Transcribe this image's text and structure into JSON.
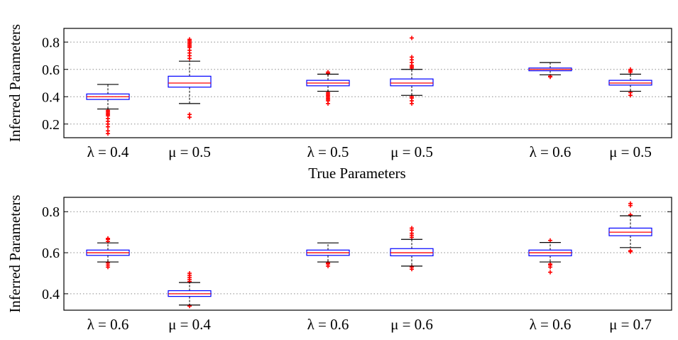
{
  "chart_data": [
    {
      "type": "box",
      "ylabel": "Inferred Parameters",
      "xlabel": "True Parameters",
      "ylim": [
        0.1,
        0.9
      ],
      "yticks": [
        0.2,
        0.4,
        0.6,
        0.8
      ],
      "ytick_labels": [
        "0.2",
        "0.4",
        "0.6",
        "0.8"
      ],
      "grid": "y-dotted",
      "colors": {
        "box": "#0000ff",
        "median": "#ff0000",
        "outlier": "#ff0000",
        "whisker": "#000000"
      },
      "categories": [
        "λ = 0.4",
        "μ = 0.5",
        "λ = 0.5",
        "μ = 0.5",
        "λ = 0.6",
        "μ = 0.5"
      ],
      "boxes": [
        {
          "category": "λ = 0.4",
          "whisker_low": 0.31,
          "q1": 0.38,
          "median": 0.4,
          "q3": 0.42,
          "whisker_high": 0.49,
          "outliers": [
            0.13,
            0.15,
            0.18,
            0.2,
            0.22,
            0.24,
            0.26,
            0.27,
            0.28,
            0.29,
            0.3
          ]
        },
        {
          "category": "μ = 0.5",
          "whisker_low": 0.35,
          "q1": 0.47,
          "median": 0.5,
          "q3": 0.55,
          "whisker_high": 0.66,
          "outliers": [
            0.25,
            0.27,
            0.68,
            0.7,
            0.72,
            0.74,
            0.76,
            0.77,
            0.78,
            0.79,
            0.8,
            0.81,
            0.82
          ]
        },
        {
          "category": "λ = 0.5",
          "whisker_low": 0.44,
          "q1": 0.48,
          "median": 0.5,
          "q3": 0.52,
          "whisker_high": 0.565,
          "outliers": [
            0.35,
            0.37,
            0.38,
            0.39,
            0.4,
            0.41,
            0.42,
            0.43,
            0.57,
            0.58
          ]
        },
        {
          "category": "μ = 0.5",
          "whisker_low": 0.41,
          "q1": 0.48,
          "median": 0.5,
          "q3": 0.53,
          "whisker_high": 0.6,
          "outliers": [
            0.35,
            0.37,
            0.39,
            0.4,
            0.61,
            0.62,
            0.63,
            0.65,
            0.67,
            0.69,
            0.83
          ]
        },
        {
          "category": "λ = 0.6",
          "whisker_low": 0.56,
          "q1": 0.59,
          "median": 0.6,
          "q3": 0.61,
          "whisker_high": 0.65,
          "outliers": [
            0.545,
            0.55
          ]
        },
        {
          "category": "μ = 0.5",
          "whisker_low": 0.44,
          "q1": 0.485,
          "median": 0.5,
          "q3": 0.52,
          "whisker_high": 0.565,
          "outliers": [
            0.41,
            0.43,
            0.58,
            0.59,
            0.6
          ]
        }
      ]
    },
    {
      "type": "box",
      "ylabel": "Inferred Parameters",
      "xlabel": "",
      "ylim": [
        0.32,
        0.87
      ],
      "yticks": [
        0.4,
        0.6,
        0.8
      ],
      "ytick_labels": [
        "0.4",
        "0.6",
        "0.8"
      ],
      "grid": "y-dotted",
      "colors": {
        "box": "#0000ff",
        "median": "#ff0000",
        "outlier": "#ff0000",
        "whisker": "#000000"
      },
      "categories": [
        "λ = 0.6",
        "μ = 0.4",
        "λ = 0.6",
        "μ = 0.6",
        "λ = 0.6",
        "μ = 0.7"
      ],
      "boxes": [
        {
          "category": "λ = 0.6",
          "whisker_low": 0.555,
          "q1": 0.587,
          "median": 0.6,
          "q3": 0.613,
          "whisker_high": 0.648,
          "outliers": [
            0.53,
            0.54,
            0.55,
            0.655,
            0.665,
            0.67
          ]
        },
        {
          "category": "μ = 0.4",
          "whisker_low": 0.345,
          "q1": 0.387,
          "median": 0.4,
          "q3": 0.415,
          "whisker_high": 0.455,
          "outliers": [
            0.34,
            0.46,
            0.47,
            0.48,
            0.49,
            0.5
          ]
        },
        {
          "category": "λ = 0.6",
          "whisker_low": 0.555,
          "q1": 0.587,
          "median": 0.6,
          "q3": 0.613,
          "whisker_high": 0.648,
          "outliers": [
            0.535,
            0.545,
            0.55
          ]
        },
        {
          "category": "μ = 0.6",
          "whisker_low": 0.535,
          "q1": 0.585,
          "median": 0.6,
          "q3": 0.62,
          "whisker_high": 0.665,
          "outliers": [
            0.52,
            0.53,
            0.675,
            0.685,
            0.695,
            0.71,
            0.72
          ]
        },
        {
          "category": "λ = 0.6",
          "whisker_low": 0.555,
          "q1": 0.585,
          "median": 0.6,
          "q3": 0.613,
          "whisker_high": 0.65,
          "outliers": [
            0.505,
            0.53,
            0.54,
            0.545,
            0.66
          ]
        },
        {
          "category": "μ = 0.7",
          "whisker_low": 0.625,
          "q1": 0.683,
          "median": 0.7,
          "q3": 0.72,
          "whisker_high": 0.78,
          "outliers": [
            0.605,
            0.61,
            0.785,
            0.83,
            0.84
          ]
        }
      ]
    }
  ]
}
